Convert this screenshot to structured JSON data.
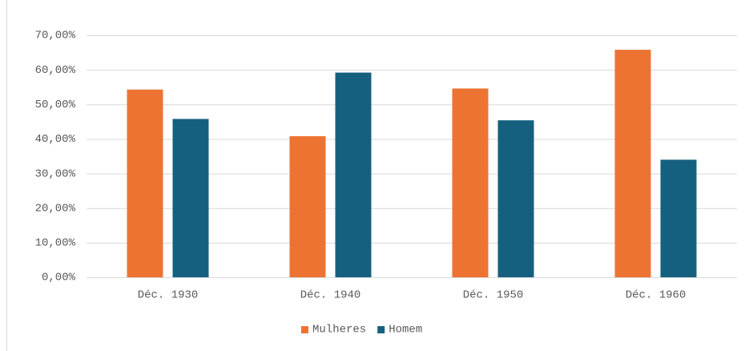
{
  "chart_data": {
    "type": "bar",
    "categories": [
      "Déc. 1930",
      "Déc. 1940",
      "Déc. 1950",
      "Déc. 1960"
    ],
    "series": [
      {
        "name": "Mulheres",
        "color": "#ed7332",
        "values": [
          54.3,
          40.8,
          54.6,
          65.8
        ]
      },
      {
        "name": "Homem",
        "color": "#16607f",
        "values": [
          45.8,
          59.2,
          45.4,
          34.0
        ]
      }
    ],
    "ylim": [
      0,
      70
    ],
    "yticks": [
      {
        "value": 0,
        "label": "0,00%"
      },
      {
        "value": 10,
        "label": "10,00%"
      },
      {
        "value": 20,
        "label": "20,00%"
      },
      {
        "value": 30,
        "label": "30,00%"
      },
      {
        "value": 40,
        "label": "40,00%"
      },
      {
        "value": 50,
        "label": "50,00%"
      },
      {
        "value": 60,
        "label": "60,00%"
      },
      {
        "value": 70,
        "label": "70,00%"
      }
    ],
    "grid": true,
    "legend": "bottom"
  }
}
